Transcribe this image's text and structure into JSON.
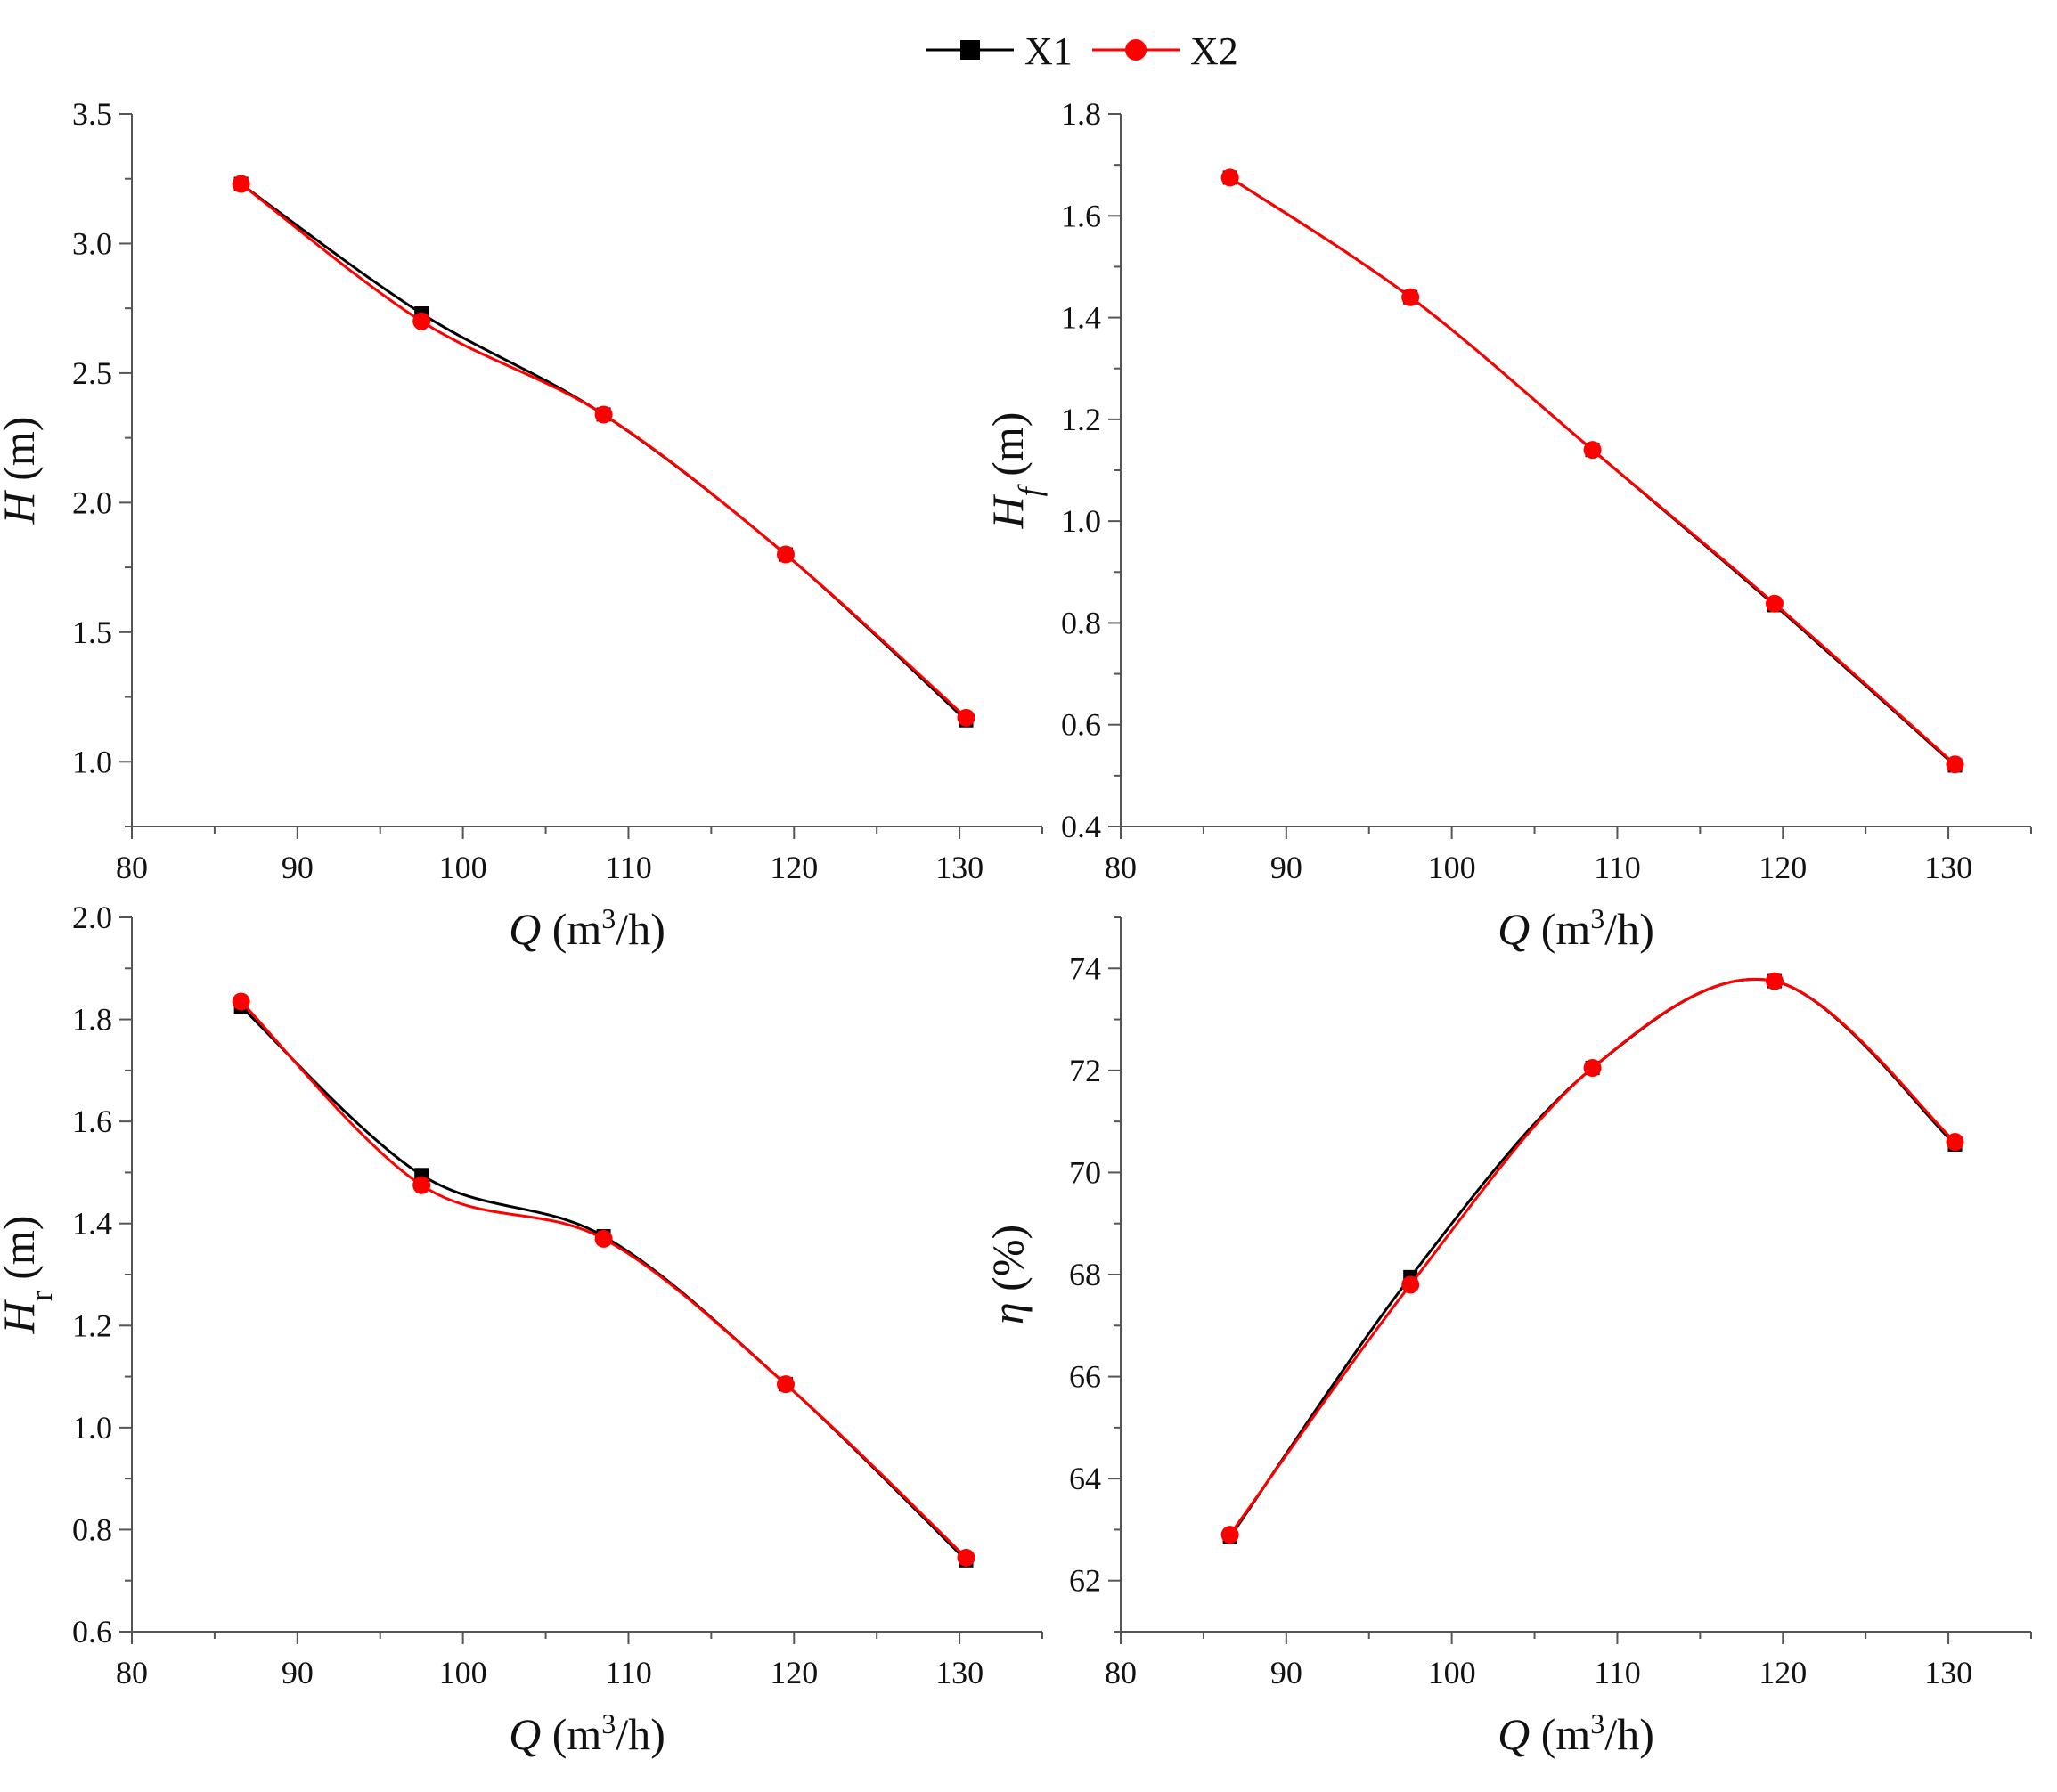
{
  "legend": {
    "items": [
      {
        "label": "X1",
        "color": "#000000",
        "marker": "square"
      },
      {
        "label": "X2",
        "color": "#ff0000",
        "marker": "circle"
      }
    ]
  },
  "chart_data": [
    {
      "type": "line",
      "xlabel": "Q (m³/h)",
      "ylabel": "H (m)",
      "xlim": [
        80,
        135
      ],
      "ylim": [
        0.75,
        3.5
      ],
      "xticks": [
        80,
        90,
        100,
        110,
        120,
        130
      ],
      "yticks": [
        1.0,
        1.5,
        2.0,
        2.5,
        3.0,
        3.5
      ],
      "x": [
        86.6,
        97.5,
        108.5,
        119.5,
        130.4
      ],
      "series": [
        {
          "name": "X1",
          "values": [
            3.23,
            2.73,
            2.34,
            1.8,
            1.16
          ]
        },
        {
          "name": "X2",
          "values": [
            3.23,
            2.7,
            2.34,
            1.8,
            1.17
          ]
        }
      ]
    },
    {
      "type": "line",
      "xlabel": "Q (m³/h)",
      "ylabel": "Hf (m)",
      "xlim": [
        80,
        135
      ],
      "ylim": [
        0.4,
        1.8
      ],
      "xticks": [
        80,
        90,
        100,
        110,
        120,
        130
      ],
      "yticks": [
        0.4,
        0.6,
        0.8,
        1.0,
        1.2,
        1.4,
        1.6,
        1.8
      ],
      "x": [
        86.6,
        97.5,
        108.5,
        119.5,
        130.4
      ],
      "series": [
        {
          "name": "X1",
          "values": [
            1.675,
            1.44,
            1.14,
            0.835,
            0.52
          ]
        },
        {
          "name": "X2",
          "values": [
            1.675,
            1.44,
            1.14,
            0.838,
            0.522
          ]
        }
      ]
    },
    {
      "type": "line",
      "xlabel": "Q (m³/h)",
      "ylabel": "Hr (m)",
      "xlim": [
        80,
        135
      ],
      "ylim": [
        0.6,
        2.0
      ],
      "xticks": [
        80,
        90,
        100,
        110,
        120,
        130
      ],
      "yticks": [
        0.6,
        0.8,
        1.0,
        1.2,
        1.4,
        1.6,
        1.8,
        2.0
      ],
      "x": [
        86.6,
        97.5,
        108.5,
        119.5,
        130.4
      ],
      "series": [
        {
          "name": "X1",
          "values": [
            1.825,
            1.495,
            1.375,
            1.085,
            0.74
          ]
        },
        {
          "name": "X2",
          "values": [
            1.835,
            1.475,
            1.37,
            1.085,
            0.745
          ]
        }
      ]
    },
    {
      "type": "line",
      "xlabel": "Q (m³/h)",
      "ylabel": "η (%)",
      "xlim": [
        80,
        135
      ],
      "ylim": [
        61,
        75
      ],
      "xticks": [
        80,
        90,
        100,
        110,
        120,
        130
      ],
      "yticks": [
        62,
        64,
        66,
        68,
        70,
        72,
        74
      ],
      "x": [
        86.6,
        97.5,
        108.5,
        119.5,
        130.4
      ],
      "series": [
        {
          "name": "X1",
          "values": [
            62.85,
            67.95,
            72.05,
            73.75,
            70.55
          ]
        },
        {
          "name": "X2",
          "values": [
            62.9,
            67.8,
            72.05,
            73.75,
            70.6
          ]
        }
      ]
    }
  ]
}
